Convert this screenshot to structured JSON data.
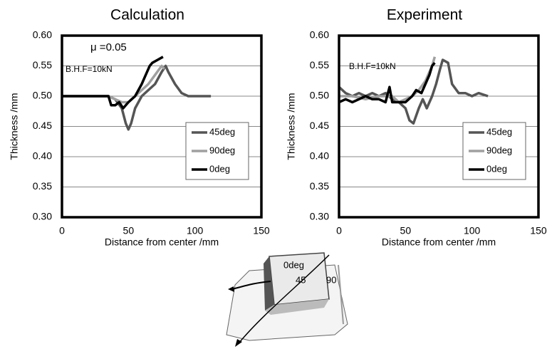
{
  "chart_data": [
    {
      "type": "line",
      "title": "Calculation",
      "x_label": "Distance from center /mm",
      "y_label": "Thickness /mm",
      "annotations": [
        "μ =0.05",
        "B.H.F=10kN"
      ],
      "xlim": [
        0,
        150
      ],
      "xticks": [
        0,
        50,
        100,
        150
      ],
      "ylim": [
        0.3,
        0.6
      ],
      "yticks": [
        {
          "value": 0.3,
          "label": "0.30"
        },
        {
          "value": 0.35,
          "label": "0.35"
        },
        {
          "value": 0.4,
          "label": "0.40"
        },
        {
          "value": 0.45,
          "label": "0.45"
        },
        {
          "value": 0.5,
          "label": "0.50"
        },
        {
          "value": 0.55,
          "label": "0.55"
        },
        {
          "value": 0.6,
          "label": "0.60"
        }
      ],
      "grid": true,
      "legend": "right",
      "series": [
        {
          "name": "45deg",
          "color": "#555555",
          "x": [
            0,
            35,
            40,
            45,
            48,
            50,
            52,
            55,
            60,
            65,
            70,
            75,
            78,
            80,
            85,
            90,
            95,
            112
          ],
          "values": [
            0.5,
            0.5,
            0.495,
            0.48,
            0.455,
            0.445,
            0.455,
            0.48,
            0.5,
            0.51,
            0.52,
            0.54,
            0.55,
            0.54,
            0.52,
            0.505,
            0.5,
            0.5
          ]
        },
        {
          "name": "90deg",
          "color": "#a0a0a0",
          "x": [
            0,
            35,
            40,
            45,
            50,
            55,
            60,
            65,
            70,
            75,
            77
          ],
          "values": [
            0.5,
            0.5,
            0.495,
            0.49,
            0.49,
            0.5,
            0.51,
            0.52,
            0.535,
            0.55,
            0.545
          ]
        },
        {
          "name": "0deg",
          "color": "#000000",
          "x": [
            0,
            35,
            37,
            40,
            43,
            46,
            50,
            55,
            60,
            63,
            66,
            68,
            72,
            76
          ],
          "values": [
            0.5,
            0.5,
            0.485,
            0.485,
            0.49,
            0.48,
            0.49,
            0.5,
            0.52,
            0.535,
            0.55,
            0.555,
            0.56,
            0.565
          ]
        }
      ]
    },
    {
      "type": "line",
      "title": "Experiment",
      "x_label": "Distance from center /mm",
      "y_label": "Thickness /mm",
      "annotations": [
        "B.H.F=10kN"
      ],
      "xlim": [
        0,
        150
      ],
      "xticks": [
        0,
        50,
        100,
        150
      ],
      "ylim": [
        0.3,
        0.6
      ],
      "yticks": [
        {
          "value": 0.3,
          "label": "0.30"
        },
        {
          "value": 0.35,
          "label": "0.35"
        },
        {
          "value": 0.4,
          "label": "0.40"
        },
        {
          "value": 0.45,
          "label": "0.45"
        },
        {
          "value": 0.5,
          "label": "0.50"
        },
        {
          "value": 0.55,
          "label": "0.55"
        },
        {
          "value": 0.6,
          "label": "0.60"
        }
      ],
      "grid": true,
      "legend": "right",
      "series": [
        {
          "name": "45deg",
          "color": "#555555",
          "x": [
            0,
            5,
            10,
            15,
            20,
            25,
            30,
            35,
            40,
            45,
            50,
            53,
            56,
            60,
            63,
            66,
            70,
            73,
            76,
            78,
            82,
            85,
            90,
            95,
            100,
            105,
            112
          ],
          "values": [
            0.515,
            0.505,
            0.5,
            0.505,
            0.5,
            0.505,
            0.5,
            0.505,
            0.495,
            0.49,
            0.48,
            0.46,
            0.455,
            0.48,
            0.495,
            0.48,
            0.5,
            0.52,
            0.545,
            0.56,
            0.555,
            0.52,
            0.505,
            0.505,
            0.5,
            0.505,
            0.5
          ]
        },
        {
          "name": "90deg",
          "color": "#a0a0a0",
          "x": [
            0,
            10,
            20,
            30,
            40,
            45,
            50,
            55,
            60,
            65,
            70,
            72
          ],
          "values": [
            0.5,
            0.5,
            0.495,
            0.5,
            0.5,
            0.49,
            0.495,
            0.5,
            0.51,
            0.525,
            0.55,
            0.565
          ]
        },
        {
          "name": "0deg",
          "color": "#000000",
          "x": [
            0,
            5,
            10,
            15,
            20,
            25,
            30,
            35,
            38,
            40,
            45,
            50,
            55,
            58,
            62,
            65,
            68,
            70,
            72
          ],
          "values": [
            0.49,
            0.495,
            0.49,
            0.495,
            0.5,
            0.495,
            0.495,
            0.49,
            0.515,
            0.49,
            0.49,
            0.49,
            0.5,
            0.51,
            0.505,
            0.52,
            0.535,
            0.55,
            0.555
          ]
        }
      ]
    }
  ],
  "figure": {
    "labels": [
      "0deg",
      "45",
      "90"
    ]
  }
}
